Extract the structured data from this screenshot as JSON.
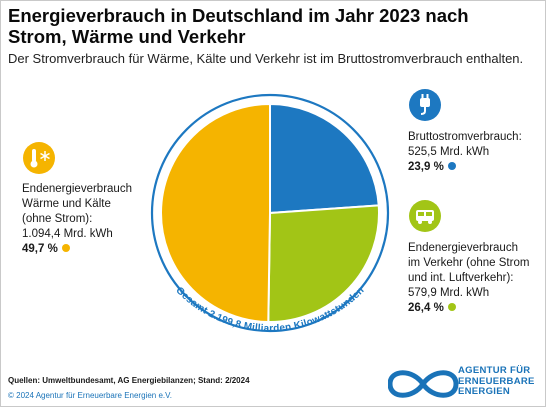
{
  "header": {
    "title": "Energieverbrauch in Deutschland im Jahr 2023 nach Strom, Wärme und Verkehr",
    "subtitle": "Der Stromverbrauch für Wärme, Kälte und Verkehr ist im Bruttostromverbrauch enthalten."
  },
  "chart_data": {
    "type": "pie",
    "caption": "Gesamt 2.199,8 Milliarden Kilowattstunden",
    "slices": [
      {
        "label_lines": [
          "Bruttostromverbrauch:",
          "525,5 Mrd. kWh"
        ],
        "value": 525.5,
        "percent_label": "23,9 %",
        "color": "#1d78c1",
        "icon": "plug-icon"
      },
      {
        "label_lines": [
          "Endenergieverbrauch",
          "im Verkehr (ohne Strom",
          "und int. Luftverkehr):",
          "579,9 Mrd. kWh"
        ],
        "value": 579.9,
        "percent_label": "26,4 %",
        "color": "#a2c516",
        "icon": "bus-icon"
      },
      {
        "label_lines": [
          "Endenergieverbrauch",
          "Wärme und Kälte",
          "(ohne Strom):",
          "1.094,4 Mrd. kWh"
        ],
        "value": 1094.4,
        "percent_label": "49,7 %",
        "color": "#f5b400",
        "icon": "thermometer-snowflake-icon"
      }
    ]
  },
  "footer": {
    "sources": "Quellen: Umweltbundesamt, AG Energiebilanzen; Stand: 2/2024",
    "copyright": "© 2024 Agentur für Erneuerbare Energien e.V.",
    "logo_lines": [
      "AGENTUR FÜR",
      "ERNEUERBARE",
      "ENERGIEN"
    ]
  }
}
